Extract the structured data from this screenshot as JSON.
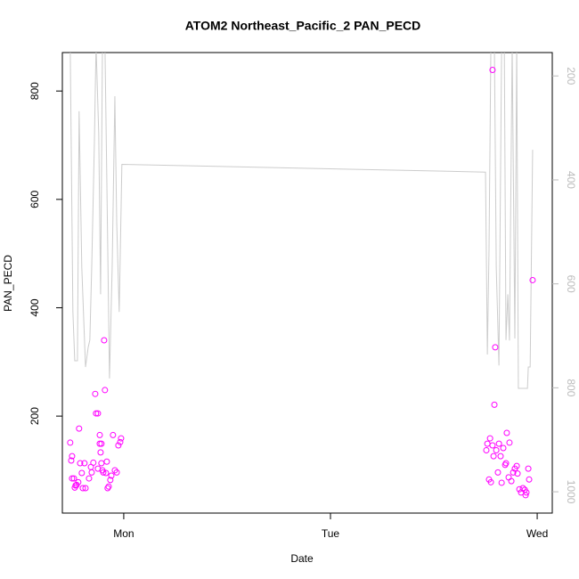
{
  "chart_data": {
    "type": "scatter",
    "title": "ATOM2 Northeast_Pacific_2 PAN_PECD",
    "xlabel": "Date",
    "ylabel": "PAN_PECD",
    "xlim": [
      0.703,
      3.073
    ],
    "xticks": [
      {
        "value": 1,
        "label": "Mon"
      },
      {
        "value": 2,
        "label": "Tue"
      },
      {
        "value": 3,
        "label": "Wed"
      }
    ],
    "ylim": [
      21,
      871
    ],
    "yticks": [
      200,
      400,
      600,
      800
    ],
    "y2lim": [
      1041,
      155
    ],
    "y2ticks": [
      200,
      400,
      600,
      800,
      1000
    ],
    "series": [
      {
        "type": "scatter",
        "color": "#ff00ff",
        "x": [
          0.741,
          0.746,
          0.75,
          0.75,
          0.759,
          0.763,
          0.767,
          0.772,
          0.78,
          0.784,
          0.789,
          0.797,
          0.802,
          0.815,
          0.81,
          0.832,
          0.845,
          0.853,
          0.862,
          0.866,
          0.875,
          0.884,
          0.884,
          0.888,
          0.892,
          0.897,
          0.901,
          0.905,
          0.909,
          0.914,
          0.918,
          0.922,
          0.927,
          0.935,
          0.94,
          0.948,
          0.957,
          0.966,
          0.974,
          0.983,
          0.987,
          0.892,
          0.875,
          0.841,
          2.784,
          2.797,
          2.793,
          2.978,
          2.754,
          2.759,
          2.772,
          2.767,
          2.776,
          2.784,
          2.789,
          2.802,
          2.81,
          2.815,
          2.823,
          2.828,
          2.836,
          2.845,
          2.853,
          2.862,
          2.866,
          2.875,
          2.884,
          2.892,
          2.901,
          2.905,
          2.914,
          2.922,
          2.931,
          2.94,
          2.944,
          2.957,
          2.961,
          2.948,
          2.849
        ],
        "values": [
          151,
          118,
          126,
          85,
          85,
          68,
          72,
          73,
          78,
          177,
          113,
          95,
          67,
          67,
          113,
          85,
          96,
          114,
          241,
          205,
          205,
          165,
          149,
          133,
          113,
          100,
          96,
          340,
          248,
          95,
          116,
          67,
          70,
          82,
          90,
          165,
          100,
          96,
          146,
          152,
          159,
          149,
          103,
          106,
          839,
          327,
          221,
          451,
          137,
          149,
          159,
          83,
          78,
          146,
          126,
          137,
          96,
          149,
          126,
          77,
          141,
          110,
          169,
          87,
          151,
          80,
          96,
          103,
          108,
          94,
          65,
          59,
          67,
          64,
          54,
          103,
          83,
          59,
          113
        ]
      },
      {
        "type": "line",
        "axis": "y2",
        "color": "#cccccc",
        "x": [
          0.741,
          0.754,
          0.763,
          0.776,
          0.784,
          0.797,
          0.815,
          0.828,
          0.836,
          0.845,
          0.858,
          0.866,
          0.879,
          0.888,
          0.897,
          0.909,
          0.918,
          0.931,
          0.944,
          0.957,
          0.966,
          0.978,
          0.991,
          2.75,
          2.759,
          2.767,
          2.776,
          2.793,
          2.802,
          2.815,
          2.828,
          2.841,
          2.849,
          2.858,
          2.866,
          2.879,
          2.892,
          2.901,
          2.909,
          2.953,
          2.957,
          2.966,
          2.978
        ],
        "values": [
          140,
          654,
          748,
          748,
          268,
          568,
          760,
          722,
          708,
          568,
          328,
          140,
          311,
          620,
          140,
          140,
          397,
          782,
          568,
          239,
          483,
          654,
          370,
          385,
          736,
          534,
          140,
          140,
          568,
          757,
          140,
          140,
          708,
          620,
          709,
          140,
          705,
          140,
          801,
          801,
          760,
          760,
          342
        ]
      }
    ]
  }
}
